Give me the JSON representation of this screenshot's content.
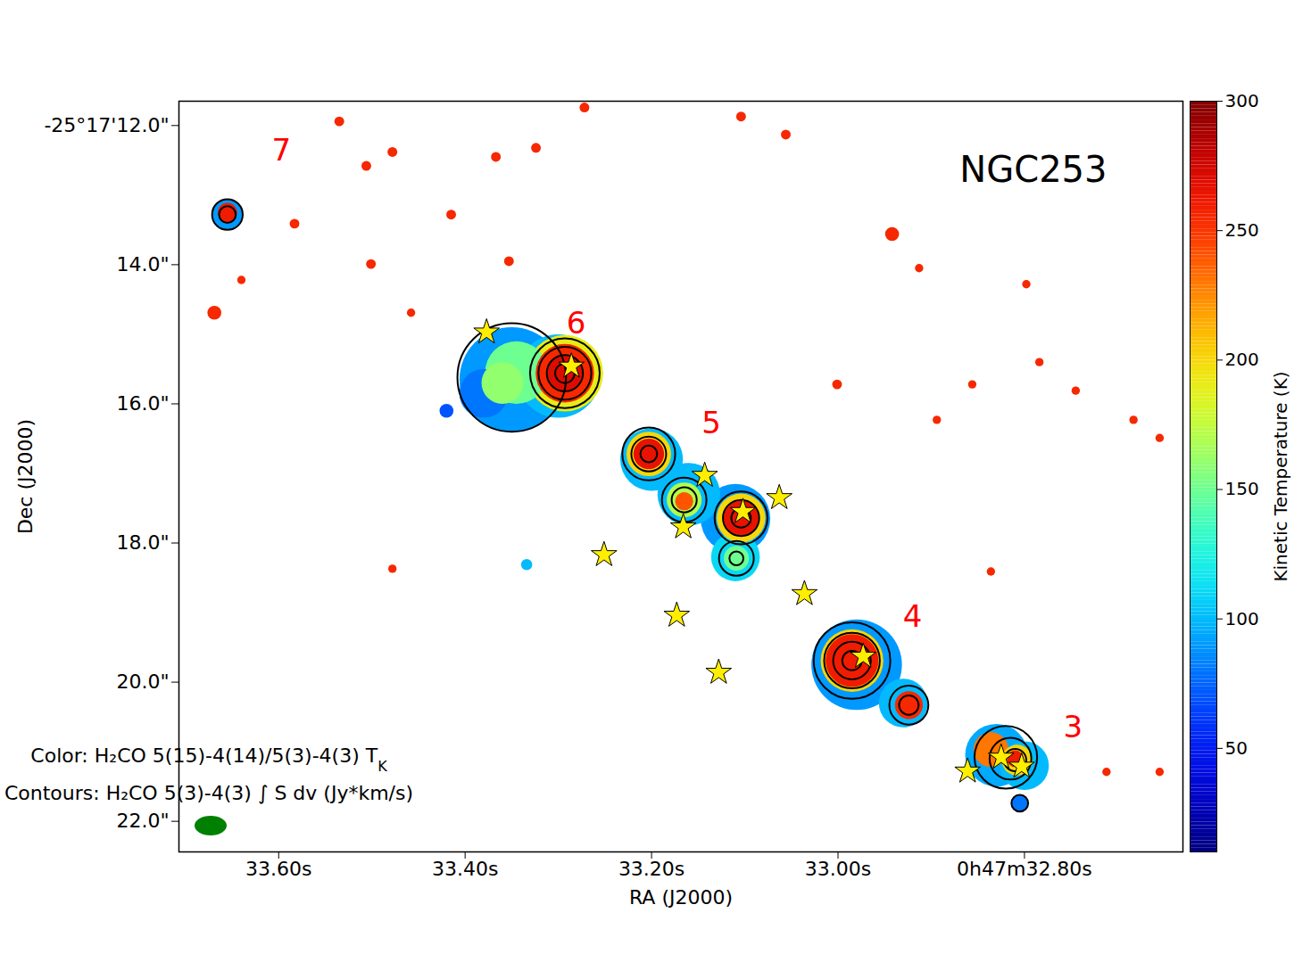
{
  "chart_data": {
    "type": "map",
    "title": "NGC253",
    "x_label": "RA (J2000)",
    "y_label": "Dec (J2000)",
    "xlim": [
      33.707,
      32.63
    ],
    "xticks": [
      {
        "value": 33.6,
        "label": "33.60s"
      },
      {
        "value": 33.4,
        "label": "33.40s"
      },
      {
        "value": 33.2,
        "label": "33.20s"
      },
      {
        "value": 33.0,
        "label": "33.00s"
      },
      {
        "value": 32.8,
        "label": "0h47m32.80s"
      }
    ],
    "ylim": [
      11.65,
      22.44
    ],
    "yticks": [
      {
        "value": 12,
        "label": "-25°17'12.0\""
      },
      {
        "value": 14,
        "label": "14.0\""
      },
      {
        "value": 16,
        "label": "16.0\""
      },
      {
        "value": 18,
        "label": "18.0\""
      },
      {
        "value": 20,
        "label": "20.0\""
      },
      {
        "value": 22,
        "label": "22.0\""
      }
    ],
    "color": "jet",
    "annotations": [
      {
        "text": "Color: H₂CO 5(15)-4(14)/5(3)-4(3) T",
        "sub": "K"
      },
      {
        "text": "Contours: H₂CO 5(3)-4(3) ∫ S dv (Jy*km/s)"
      }
    ],
    "regions": [
      {
        "label": "7",
        "x": 33.597,
        "y": 12.36
      },
      {
        "label": "6",
        "x": 33.281,
        "y": 14.85
      },
      {
        "label": "5",
        "x": 33.136,
        "y": 16.28
      },
      {
        "label": "4",
        "x": 32.92,
        "y": 19.06
      },
      {
        "label": "3",
        "x": 32.748,
        "y": 20.65
      }
    ],
    "cells": [
      {
        "x": 33.35,
        "y": 15.65,
        "r": 0.75,
        "t": 90
      },
      {
        "x": 33.3,
        "y": 15.6,
        "r": 0.6,
        "t": 100
      },
      {
        "x": 33.38,
        "y": 15.85,
        "r": 0.35,
        "t": 80
      },
      {
        "x": 33.42,
        "y": 16.1,
        "r": 0.1,
        "t": 70
      },
      {
        "x": 33.345,
        "y": 15.55,
        "r": 0.45,
        "t": 150
      },
      {
        "x": 33.36,
        "y": 15.7,
        "r": 0.3,
        "t": 160
      },
      {
        "x": 33.293,
        "y": 15.56,
        "r": 0.55,
        "t": 190
      },
      {
        "x": 33.293,
        "y": 15.56,
        "r": 0.42,
        "t": 255
      },
      {
        "x": 33.293,
        "y": 15.56,
        "r": 0.25,
        "t": 270
      },
      {
        "x": 33.2,
        "y": 16.8,
        "r": 0.45,
        "t": 100
      },
      {
        "x": 33.16,
        "y": 17.3,
        "r": 0.45,
        "t": 100
      },
      {
        "x": 33.11,
        "y": 17.65,
        "r": 0.5,
        "t": 90
      },
      {
        "x": 33.11,
        "y": 18.2,
        "r": 0.35,
        "t": 110
      },
      {
        "x": 33.203,
        "y": 16.72,
        "r": 0.32,
        "t": 200
      },
      {
        "x": 33.203,
        "y": 16.72,
        "r": 0.22,
        "t": 265
      },
      {
        "x": 33.165,
        "y": 17.38,
        "r": 0.25,
        "t": 170
      },
      {
        "x": 33.165,
        "y": 17.4,
        "r": 0.13,
        "t": 240
      },
      {
        "x": 33.104,
        "y": 17.64,
        "r": 0.35,
        "t": 200
      },
      {
        "x": 33.104,
        "y": 17.64,
        "r": 0.25,
        "t": 265
      },
      {
        "x": 33.109,
        "y": 18.22,
        "r": 0.18,
        "t": 150
      },
      {
        "x": 32.98,
        "y": 19.75,
        "r": 0.65,
        "t": 90
      },
      {
        "x": 32.93,
        "y": 20.3,
        "r": 0.35,
        "t": 100
      },
      {
        "x": 32.985,
        "y": 19.69,
        "r": 0.45,
        "t": 200
      },
      {
        "x": 32.985,
        "y": 19.69,
        "r": 0.38,
        "t": 260
      },
      {
        "x": 32.924,
        "y": 20.33,
        "r": 0.2,
        "t": 255
      },
      {
        "x": 32.83,
        "y": 21.05,
        "r": 0.45,
        "t": 95
      },
      {
        "x": 32.8,
        "y": 21.2,
        "r": 0.35,
        "t": 100
      },
      {
        "x": 32.805,
        "y": 21.74,
        "r": 0.12,
        "t": 80
      },
      {
        "x": 32.836,
        "y": 20.97,
        "r": 0.25,
        "t": 230
      },
      {
        "x": 32.808,
        "y": 21.12,
        "r": 0.22,
        "t": 200
      },
      {
        "x": 32.81,
        "y": 21.1,
        "r": 0.12,
        "t": 260
      },
      {
        "x": 33.655,
        "y": 13.28,
        "r": 0.22,
        "t": 90
      },
      {
        "x": 33.655,
        "y": 13.25,
        "r": 0.14,
        "t": 260
      },
      {
        "x": 33.535,
        "y": 11.94,
        "r": 0.07,
        "t": 255
      },
      {
        "x": 33.478,
        "y": 12.38,
        "r": 0.07,
        "t": 255
      },
      {
        "x": 33.324,
        "y": 12.32,
        "r": 0.07,
        "t": 255
      },
      {
        "x": 33.506,
        "y": 12.58,
        "r": 0.07,
        "t": 255
      },
      {
        "x": 33.367,
        "y": 12.45,
        "r": 0.07,
        "t": 255
      },
      {
        "x": 33.583,
        "y": 13.41,
        "r": 0.07,
        "t": 255
      },
      {
        "x": 33.415,
        "y": 13.28,
        "r": 0.07,
        "t": 255
      },
      {
        "x": 33.501,
        "y": 13.99,
        "r": 0.07,
        "t": 255
      },
      {
        "x": 33.353,
        "y": 13.95,
        "r": 0.07,
        "t": 255
      },
      {
        "x": 33.272,
        "y": 11.74,
        "r": 0.07,
        "t": 255
      },
      {
        "x": 33.104,
        "y": 11.87,
        "r": 0.07,
        "t": 255
      },
      {
        "x": 33.056,
        "y": 12.13,
        "r": 0.07,
        "t": 255
      },
      {
        "x": 32.942,
        "y": 13.56,
        "r": 0.1,
        "t": 255
      },
      {
        "x": 32.798,
        "y": 14.28,
        "r": 0.06,
        "t": 255
      },
      {
        "x": 32.913,
        "y": 14.05,
        "r": 0.06,
        "t": 255
      },
      {
        "x": 33.001,
        "y": 15.72,
        "r": 0.07,
        "t": 255
      },
      {
        "x": 32.856,
        "y": 15.72,
        "r": 0.06,
        "t": 255
      },
      {
        "x": 32.784,
        "y": 15.4,
        "r": 0.06,
        "t": 255
      },
      {
        "x": 32.745,
        "y": 15.81,
        "r": 0.06,
        "t": 255
      },
      {
        "x": 32.683,
        "y": 16.23,
        "r": 0.06,
        "t": 255
      },
      {
        "x": 32.655,
        "y": 16.49,
        "r": 0.06,
        "t": 255
      },
      {
        "x": 32.712,
        "y": 21.29,
        "r": 0.06,
        "t": 255
      },
      {
        "x": 32.655,
        "y": 21.29,
        "r": 0.06,
        "t": 255
      },
      {
        "x": 32.894,
        "y": 16.23,
        "r": 0.06,
        "t": 255
      },
      {
        "x": 32.836,
        "y": 18.41,
        "r": 0.06,
        "t": 255
      },
      {
        "x": 33.478,
        "y": 18.37,
        "r": 0.06,
        "t": 255
      },
      {
        "x": 33.334,
        "y": 18.31,
        "r": 0.08,
        "t": 100
      },
      {
        "x": 33.669,
        "y": 14.69,
        "r": 0.1,
        "t": 255
      },
      {
        "x": 33.458,
        "y": 14.69,
        "r": 0.06,
        "t": 255
      },
      {
        "x": 33.64,
        "y": 14.22,
        "r": 0.06,
        "t": 255
      }
    ],
    "contours": [
      {
        "x": 33.35,
        "y": 15.62,
        "r": 0.78
      },
      {
        "x": 33.293,
        "y": 15.56,
        "r": 0.5
      },
      {
        "x": 33.293,
        "y": 15.56,
        "r": 0.38
      },
      {
        "x": 33.293,
        "y": 15.56,
        "r": 0.26
      },
      {
        "x": 33.293,
        "y": 15.56,
        "r": 0.14
      },
      {
        "x": 33.203,
        "y": 16.72,
        "r": 0.38
      },
      {
        "x": 33.203,
        "y": 16.72,
        "r": 0.25
      },
      {
        "x": 33.203,
        "y": 16.72,
        "r": 0.12
      },
      {
        "x": 33.165,
        "y": 17.38,
        "r": 0.32
      },
      {
        "x": 33.165,
        "y": 17.38,
        "r": 0.18
      },
      {
        "x": 33.104,
        "y": 17.64,
        "r": 0.38
      },
      {
        "x": 33.104,
        "y": 17.64,
        "r": 0.26
      },
      {
        "x": 33.104,
        "y": 17.64,
        "r": 0.14
      },
      {
        "x": 33.109,
        "y": 18.22,
        "r": 0.25
      },
      {
        "x": 33.109,
        "y": 18.22,
        "r": 0.1
      },
      {
        "x": 32.985,
        "y": 19.69,
        "r": 0.55
      },
      {
        "x": 32.985,
        "y": 19.69,
        "r": 0.4
      },
      {
        "x": 32.985,
        "y": 19.69,
        "r": 0.27
      },
      {
        "x": 32.985,
        "y": 19.69,
        "r": 0.14
      },
      {
        "x": 32.924,
        "y": 20.33,
        "r": 0.28
      },
      {
        "x": 32.924,
        "y": 20.33,
        "r": 0.14
      },
      {
        "x": 32.82,
        "y": 21.08,
        "r": 0.45
      },
      {
        "x": 32.815,
        "y": 21.1,
        "r": 0.3
      },
      {
        "x": 32.81,
        "y": 21.12,
        "r": 0.16
      },
      {
        "x": 32.805,
        "y": 21.74,
        "r": 0.12
      },
      {
        "x": 33.655,
        "y": 13.28,
        "r": 0.22
      },
      {
        "x": 33.655,
        "y": 13.28,
        "r": 0.12
      }
    ],
    "stars": [
      {
        "x": 33.377,
        "y": 14.97
      },
      {
        "x": 33.286,
        "y": 15.46
      },
      {
        "x": 33.251,
        "y": 18.17
      },
      {
        "x": 33.173,
        "y": 19.04
      },
      {
        "x": 33.166,
        "y": 17.77
      },
      {
        "x": 33.143,
        "y": 17.03
      },
      {
        "x": 33.128,
        "y": 19.86
      },
      {
        "x": 33.063,
        "y": 17.35
      },
      {
        "x": 33.036,
        "y": 18.73
      },
      {
        "x": 33.102,
        "y": 17.55
      },
      {
        "x": 32.973,
        "y": 19.63
      },
      {
        "x": 32.861,
        "y": 21.28
      },
      {
        "x": 32.803,
        "y": 21.21
      },
      {
        "x": 32.825,
        "y": 21.08
      }
    ],
    "colorbar": {
      "label": "Kinetic Temperature (K)",
      "range": [
        10,
        300
      ],
      "ticks": [
        50,
        100,
        150,
        200,
        250,
        300
      ]
    }
  }
}
